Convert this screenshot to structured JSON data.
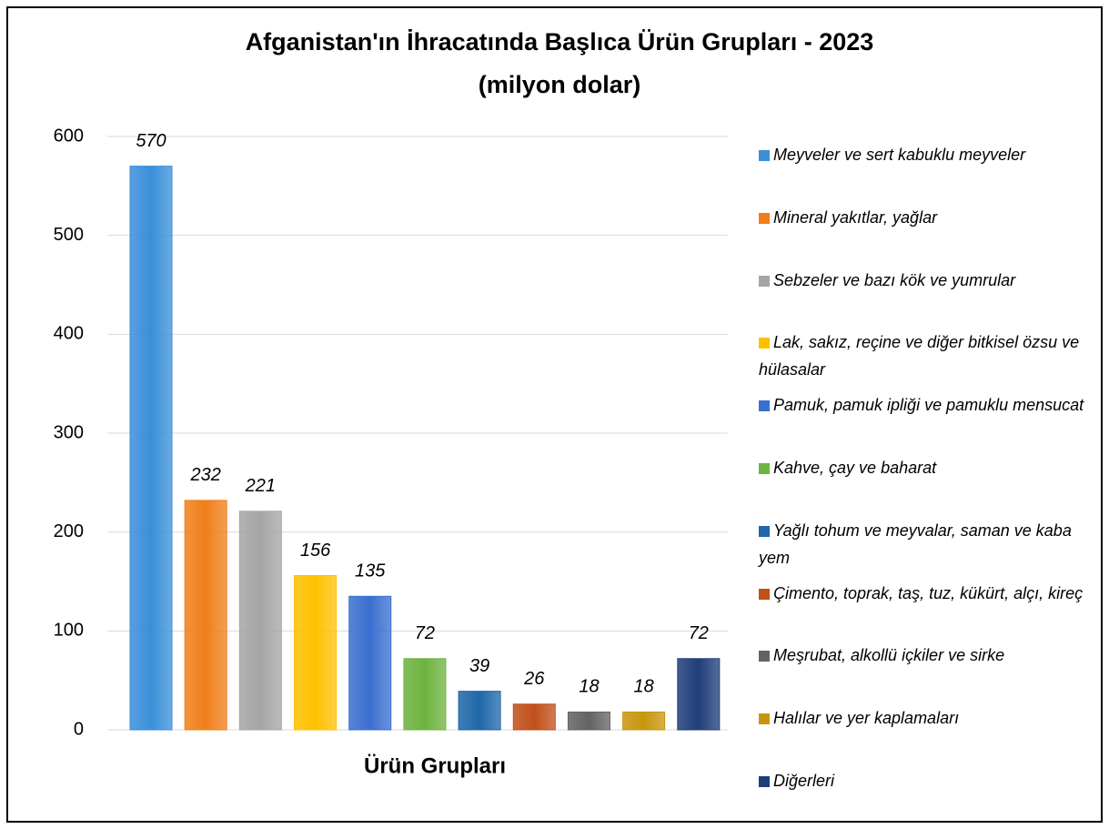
{
  "chart_data": {
    "type": "bar",
    "title": "Afganistan'ın İhracatında Başlıca Ürün Grupları - 2023",
    "subtitle": "(milyon dolar)",
    "x_label": "Ürün Grupları",
    "categories": [
      "Meyveler ve sert kabuklu meyveler",
      "Mineral yakıtlar, yağlar",
      "Sebzeler ve bazı kök ve yumrular",
      "Lak, sakız, reçine ve diğer bitkisel özsu ve hülasalar",
      "Pamuk, pamuk ipliği ve pamuklu mensucat",
      "Kahve, çay ve baharat",
      "Yağlı tohum ve meyvalar, saman ve kaba yem",
      "Çimento, toprak, taş, tuz, kükürt, alçı, kireç",
      "Meşrubat, alkollü içkiler ve sirke",
      "Halılar ve yer kaplamaları",
      "Diğerleri"
    ],
    "values": [
      570,
      232,
      221,
      156,
      135,
      72,
      39,
      26,
      18,
      18,
      72
    ],
    "colors": [
      "#3a8fd9",
      "#f07f1a",
      "#a5a5a5",
      "#ffc000",
      "#3a6fd0",
      "#6db33f",
      "#1f67a8",
      "#c0501a",
      "#636363",
      "#c8960c",
      "#1f3e7a"
    ],
    "ylim": [
      0,
      600
    ],
    "yticks": [
      0,
      100,
      200,
      300,
      400,
      500,
      600
    ],
    "grid": true,
    "legend": "right"
  }
}
